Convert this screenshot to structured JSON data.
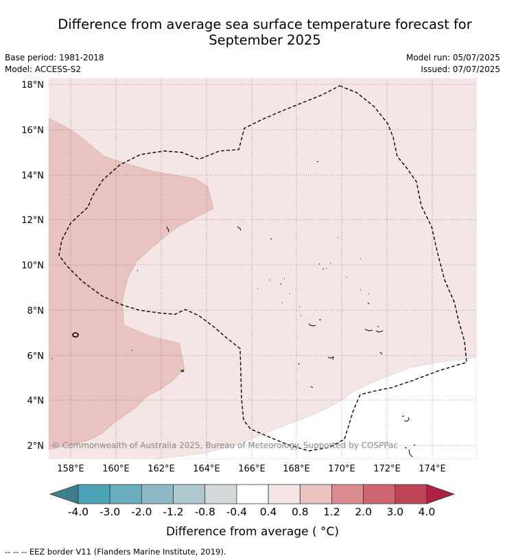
{
  "title_line1": "Difference from average sea surface temperature forecast for",
  "title_line2": "September 2025",
  "base_period": "Base period: 1981-2018",
  "model": "Model: ACCESS-S2",
  "model_run": "Model run: 05/07/2025",
  "issued": "Issued: 07/07/2025",
  "lat_labels": [
    "18°N",
    "16°N",
    "14°N",
    "12°N",
    "10°N",
    "8°N",
    "6°N",
    "4°N",
    "2°N"
  ],
  "lon_labels": [
    "158°E",
    "160°E",
    "162°E",
    "164°E",
    "166°E",
    "168°E",
    "170°E",
    "172°E",
    "174°E"
  ],
  "copyright": "© Commonwealth of Australia 2025, Bureau of Meteorology. Supported by COSPPac",
  "colorbar": {
    "ticks": [
      "-4.0",
      "-3.0",
      "-2.0",
      "-1.2",
      "-0.8",
      "-0.4",
      "0.4",
      "0.8",
      "1.2",
      "2.0",
      "3.0",
      "4.0"
    ],
    "colors": [
      "#4ba3b5",
      "#6aaebf",
      "#8fbac5",
      "#b0c9ce",
      "#d4dadc",
      "#ffffff",
      "#f5e6e5",
      "#e8c3bf",
      "#d98c92",
      "#cd6672",
      "#be4455"
    ],
    "under_color": "#3c7e8a",
    "over_color": "#b22040",
    "label": "Difference from average ( °C)"
  },
  "legend_note": "--  --  -- EEZ border V11 (Flanders Marine Institute, 2019).",
  "map_colors": {
    "band_0_4_to_0_8": "#f5e6e5",
    "band_0_8_to_1_2": "#e8c3bf",
    "band_neg_0_4_to_0_4": "#ffffff"
  }
}
